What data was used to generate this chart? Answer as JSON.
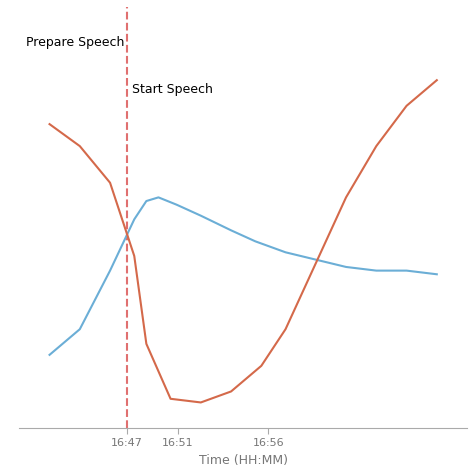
{
  "xlabel": "Time (HH:MM)",
  "background_color": "#ffffff",
  "vline_x": 16.4583,
  "vline_color": "#e07070",
  "label_prepare": "Prepare Speech",
  "label_start": "Start Speech",
  "blue_line_color": "#6baed6",
  "red_line_color": "#d4694a",
  "blue_x": [
    16.33,
    16.38,
    16.43,
    16.47,
    16.49,
    16.51,
    16.54,
    16.58,
    16.63,
    16.67,
    16.72,
    16.77,
    16.82,
    16.87,
    16.92,
    16.97
  ],
  "blue_y": [
    0.15,
    0.22,
    0.38,
    0.52,
    0.57,
    0.58,
    0.56,
    0.53,
    0.49,
    0.46,
    0.43,
    0.41,
    0.39,
    0.38,
    0.38,
    0.37
  ],
  "red_x": [
    16.33,
    16.38,
    16.43,
    16.47,
    16.49,
    16.53,
    16.58,
    16.63,
    16.68,
    16.72,
    16.77,
    16.82,
    16.87,
    16.92,
    16.97
  ],
  "red_y": [
    0.78,
    0.72,
    0.62,
    0.42,
    0.18,
    0.03,
    0.02,
    0.05,
    0.12,
    0.22,
    0.4,
    0.58,
    0.72,
    0.83,
    0.9
  ],
  "xtick_positions": [
    16.4583,
    16.5417,
    16.6917
  ],
  "xtick_labels": [
    "16:47",
    "16:51",
    "16:56"
  ],
  "ylim": [
    -0.05,
    1.1
  ],
  "xlim": [
    16.28,
    17.02
  ]
}
